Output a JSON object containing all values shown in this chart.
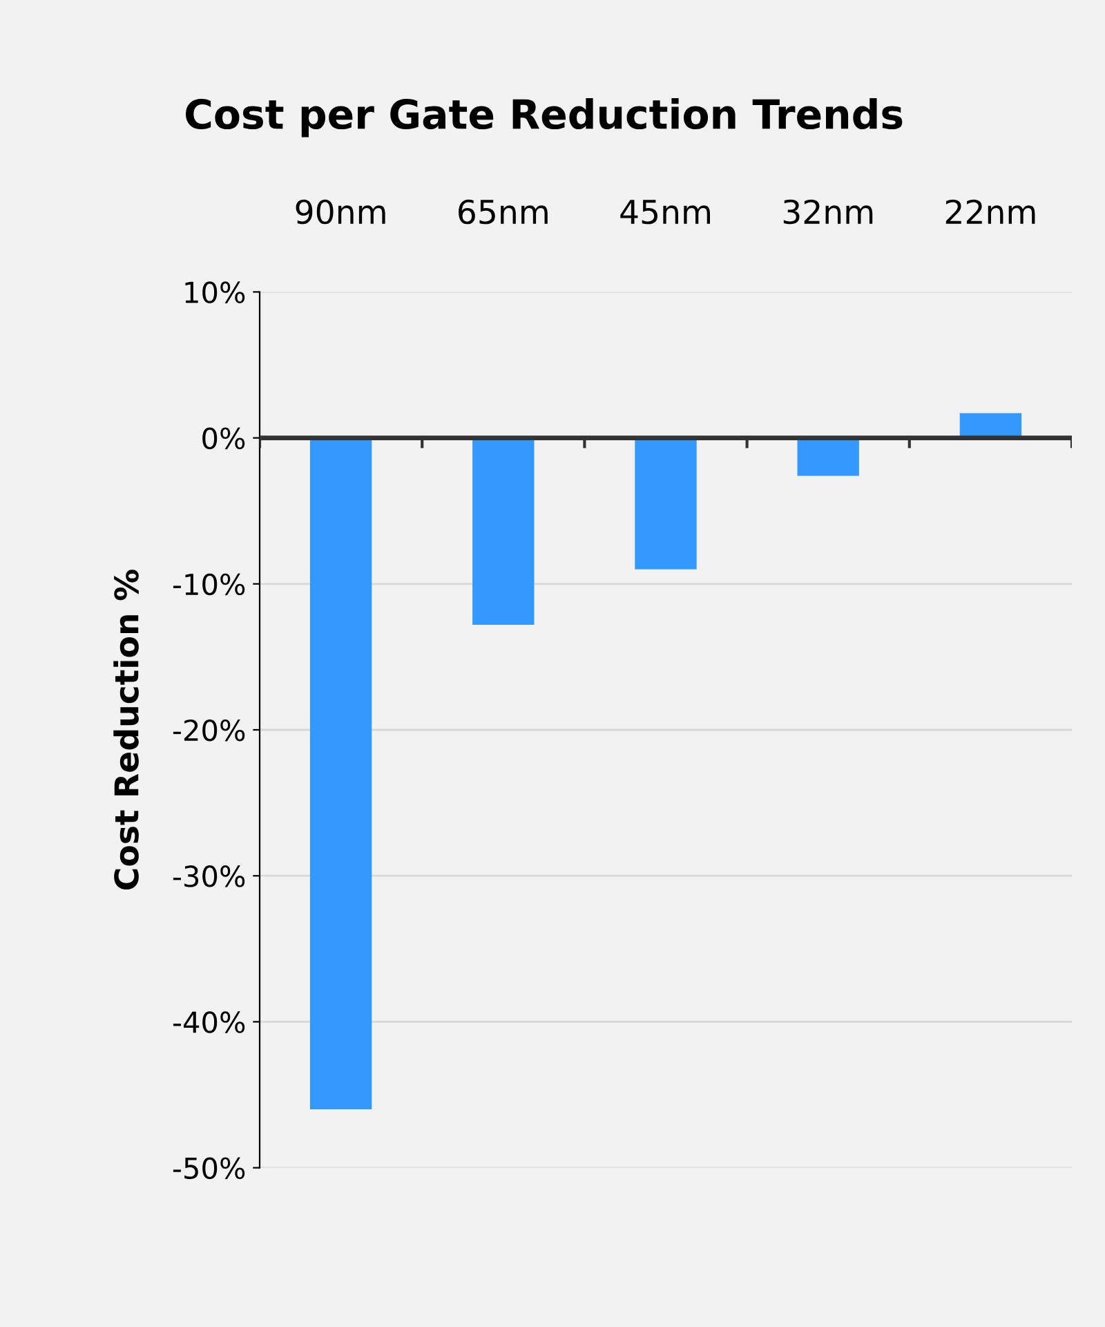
{
  "chart_data": {
    "type": "bar",
    "title": "Cost per Gate Reduction Trends",
    "ylabel": "Cost Reduction %",
    "categories": [
      "90nm",
      "65nm",
      "45nm",
      "32nm",
      "22nm"
    ],
    "values": [
      -46,
      -12.8,
      -9,
      -2.6,
      1.7
    ],
    "color": "#3399ff",
    "ylim": [
      -50,
      10
    ],
    "yticks": [
      {
        "value": 10,
        "label": "10%"
      },
      {
        "value": 0,
        "label": "0%"
      },
      {
        "value": -10,
        "label": "-10%"
      },
      {
        "value": -20,
        "label": "-20%"
      },
      {
        "value": -30,
        "label": "-30%"
      },
      {
        "value": -40,
        "label": "-40%"
      },
      {
        "value": -50,
        "label": "-50%"
      }
    ],
    "grid": "y"
  }
}
